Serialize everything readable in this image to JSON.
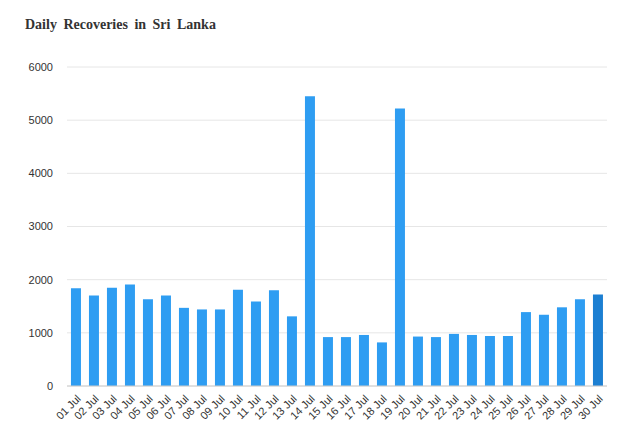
{
  "chart_data": {
    "type": "bar",
    "title": "Daily Recoveries in Sri Lanka",
    "categories": [
      "01 Jul",
      "02 Jul",
      "03 Jul",
      "04 Jul",
      "05 Jul",
      "06 Jul",
      "07 Jul",
      "08 Jul",
      "09 Jul",
      "10 Jul",
      "11 Jul",
      "12 Jul",
      "13 Jul",
      "14 Jul",
      "15 Jul",
      "16 Jul",
      "17 Jul",
      "18 Jul",
      "19 Jul",
      "20 Jul",
      "21 Jul",
      "22 Jul",
      "23 Jul",
      "24 Jul",
      "25 Jul",
      "26 Jul",
      "27 Jul",
      "28 Jul",
      "29 Jul",
      "30 Jul"
    ],
    "values": [
      1840,
      1700,
      1850,
      1910,
      1630,
      1700,
      1470,
      1440,
      1440,
      1810,
      1590,
      1800,
      1310,
      5450,
      920,
      920,
      960,
      820,
      5220,
      930,
      920,
      980,
      960,
      940,
      940,
      1390,
      1340,
      1480,
      1630,
      1720
    ],
    "colors": [
      "#2e9df2",
      "#2e9df2",
      "#2e9df2",
      "#2e9df2",
      "#2e9df2",
      "#2e9df2",
      "#2e9df2",
      "#2e9df2",
      "#2e9df2",
      "#2e9df2",
      "#2e9df2",
      "#2e9df2",
      "#2e9df2",
      "#2e9df2",
      "#2e9df2",
      "#2e9df2",
      "#2e9df2",
      "#2e9df2",
      "#2e9df2",
      "#2e9df2",
      "#2e9df2",
      "#2e9df2",
      "#2e9df2",
      "#2e9df2",
      "#2e9df2",
      "#2e9df2",
      "#2e9df2",
      "#2e9df2",
      "#2e9df2",
      "#1c7fd2"
    ],
    "ylim": [
      0,
      6000
    ],
    "yticks": [
      0,
      1000,
      2000,
      3000,
      4000,
      5000,
      6000
    ],
    "grid": true
  }
}
